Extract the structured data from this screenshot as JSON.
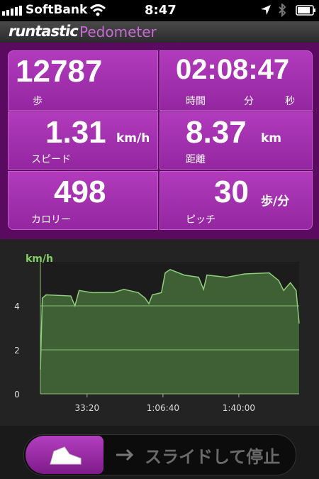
{
  "status_bar": {
    "carrier": "SoftBank",
    "time": "8:47"
  },
  "header": {
    "brand": "runtastic",
    "app": "Pedometer"
  },
  "stats": [
    {
      "value": "12787",
      "label": "歩"
    },
    {
      "value": "02:08:47",
      "labels": [
        "時間",
        "分",
        "秒"
      ]
    },
    {
      "value": "1.31",
      "unit": "km/h",
      "label": "スピード"
    },
    {
      "value": "8.37",
      "unit": "km",
      "label": "距離"
    },
    {
      "value": "498",
      "label": "カロリー"
    },
    {
      "value": "30",
      "unit": "歩/分",
      "label": "ピッチ"
    }
  ],
  "chart_data": {
    "type": "area",
    "y_label": "km/h",
    "color": "#8fd07a",
    "x": [
      770,
      820,
      920,
      1570,
      1680,
      1790,
      2130,
      2690,
      2970,
      3350,
      3530,
      3630,
      3720,
      3960,
      4060,
      4190,
      4560,
      4940,
      5070,
      5160,
      5680,
      6150,
      6800,
      7050,
      7180,
      7360,
      7510,
      7590
    ],
    "values": [
      1.1,
      4.35,
      4.5,
      4.45,
      4.0,
      4.7,
      4.6,
      4.6,
      4.75,
      4.6,
      4.35,
      4.1,
      4.5,
      4.6,
      5.5,
      5.65,
      5.4,
      5.3,
      4.75,
      5.4,
      5.3,
      5.45,
      5.5,
      5.15,
      4.7,
      5.05,
      4.7,
      3.2
    ],
    "xlim": [
      770,
      7590
    ],
    "ylim": [
      0,
      6
    ],
    "yticks": [
      0,
      2,
      4
    ],
    "xticks": [
      {
        "value": 2000,
        "label": "33:20"
      },
      {
        "value": 4000,
        "label": "1:06:40"
      },
      {
        "value": 6000,
        "label": "1:40:00"
      }
    ],
    "grid": true
  },
  "slider": {
    "text": "スライドして停止"
  }
}
